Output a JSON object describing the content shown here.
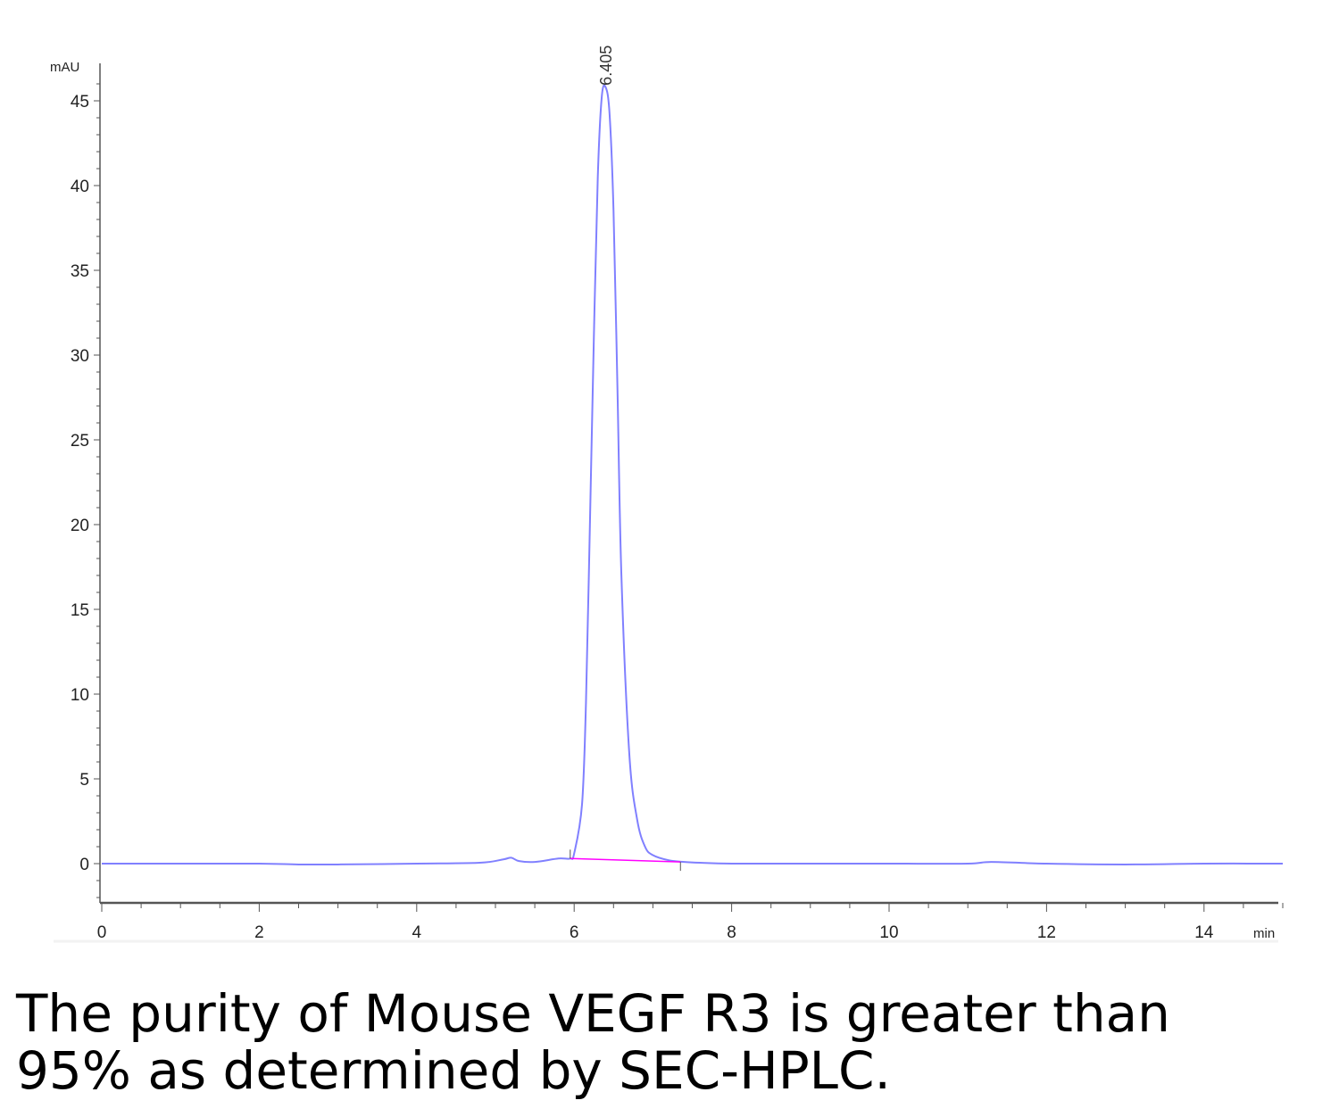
{
  "chart_data": {
    "type": "line",
    "ylabel": "mAU",
    "xlabel": "min",
    "xlim": [
      0,
      15
    ],
    "ylim": [
      -2.2,
      47
    ],
    "x_ticks": [
      0,
      2,
      4,
      6,
      8,
      10,
      12,
      14
    ],
    "x_tick_labels": [
      "0",
      "2",
      "4",
      "6",
      "8",
      "10",
      "12",
      "14"
    ],
    "y_ticks": [
      0,
      5,
      10,
      15,
      20,
      25,
      30,
      35,
      40,
      45
    ],
    "y_tick_labels": [
      "0",
      "5",
      "10",
      "15",
      "20",
      "25",
      "30",
      "35",
      "40",
      "45"
    ],
    "grid": false,
    "peak_label": "6.405",
    "series": [
      {
        "color": "#8080ff",
        "x": [
          0,
          1,
          2,
          2.5,
          3,
          4,
          4.8,
          5.1,
          5.2,
          5.3,
          5.5,
          5.8,
          5.95,
          6.0,
          6.1,
          6.15,
          6.2,
          6.25,
          6.3,
          6.35,
          6.4,
          6.45,
          6.5,
          6.55,
          6.6,
          6.7,
          6.8,
          6.9,
          7.0,
          7.2,
          7.4,
          7.6,
          8,
          9,
          10,
          11,
          11.3,
          12,
          13,
          14,
          15
        ],
        "y": [
          0,
          0,
          0,
          -0.05,
          -0.05,
          0,
          0.05,
          0.25,
          0.35,
          0.15,
          0.1,
          0.3,
          0.3,
          0.6,
          3.5,
          9.5,
          20,
          31,
          40.5,
          45.2,
          45.8,
          44.2,
          38.5,
          28,
          17,
          6.5,
          2.6,
          1.0,
          0.5,
          0.2,
          0.1,
          0.05,
          0,
          0,
          0,
          0,
          0.1,
          0,
          -0.05,
          0,
          0
        ]
      }
    ],
    "baseline": {
      "color": "#ff00ff",
      "x": [
        5.95,
        7.35
      ],
      "y": [
        0.3,
        0.1
      ]
    }
  },
  "caption": {
    "line1": "The purity of Mouse VEGF R3 is greater than",
    "line2": "95% as determined by SEC-HPLC."
  }
}
